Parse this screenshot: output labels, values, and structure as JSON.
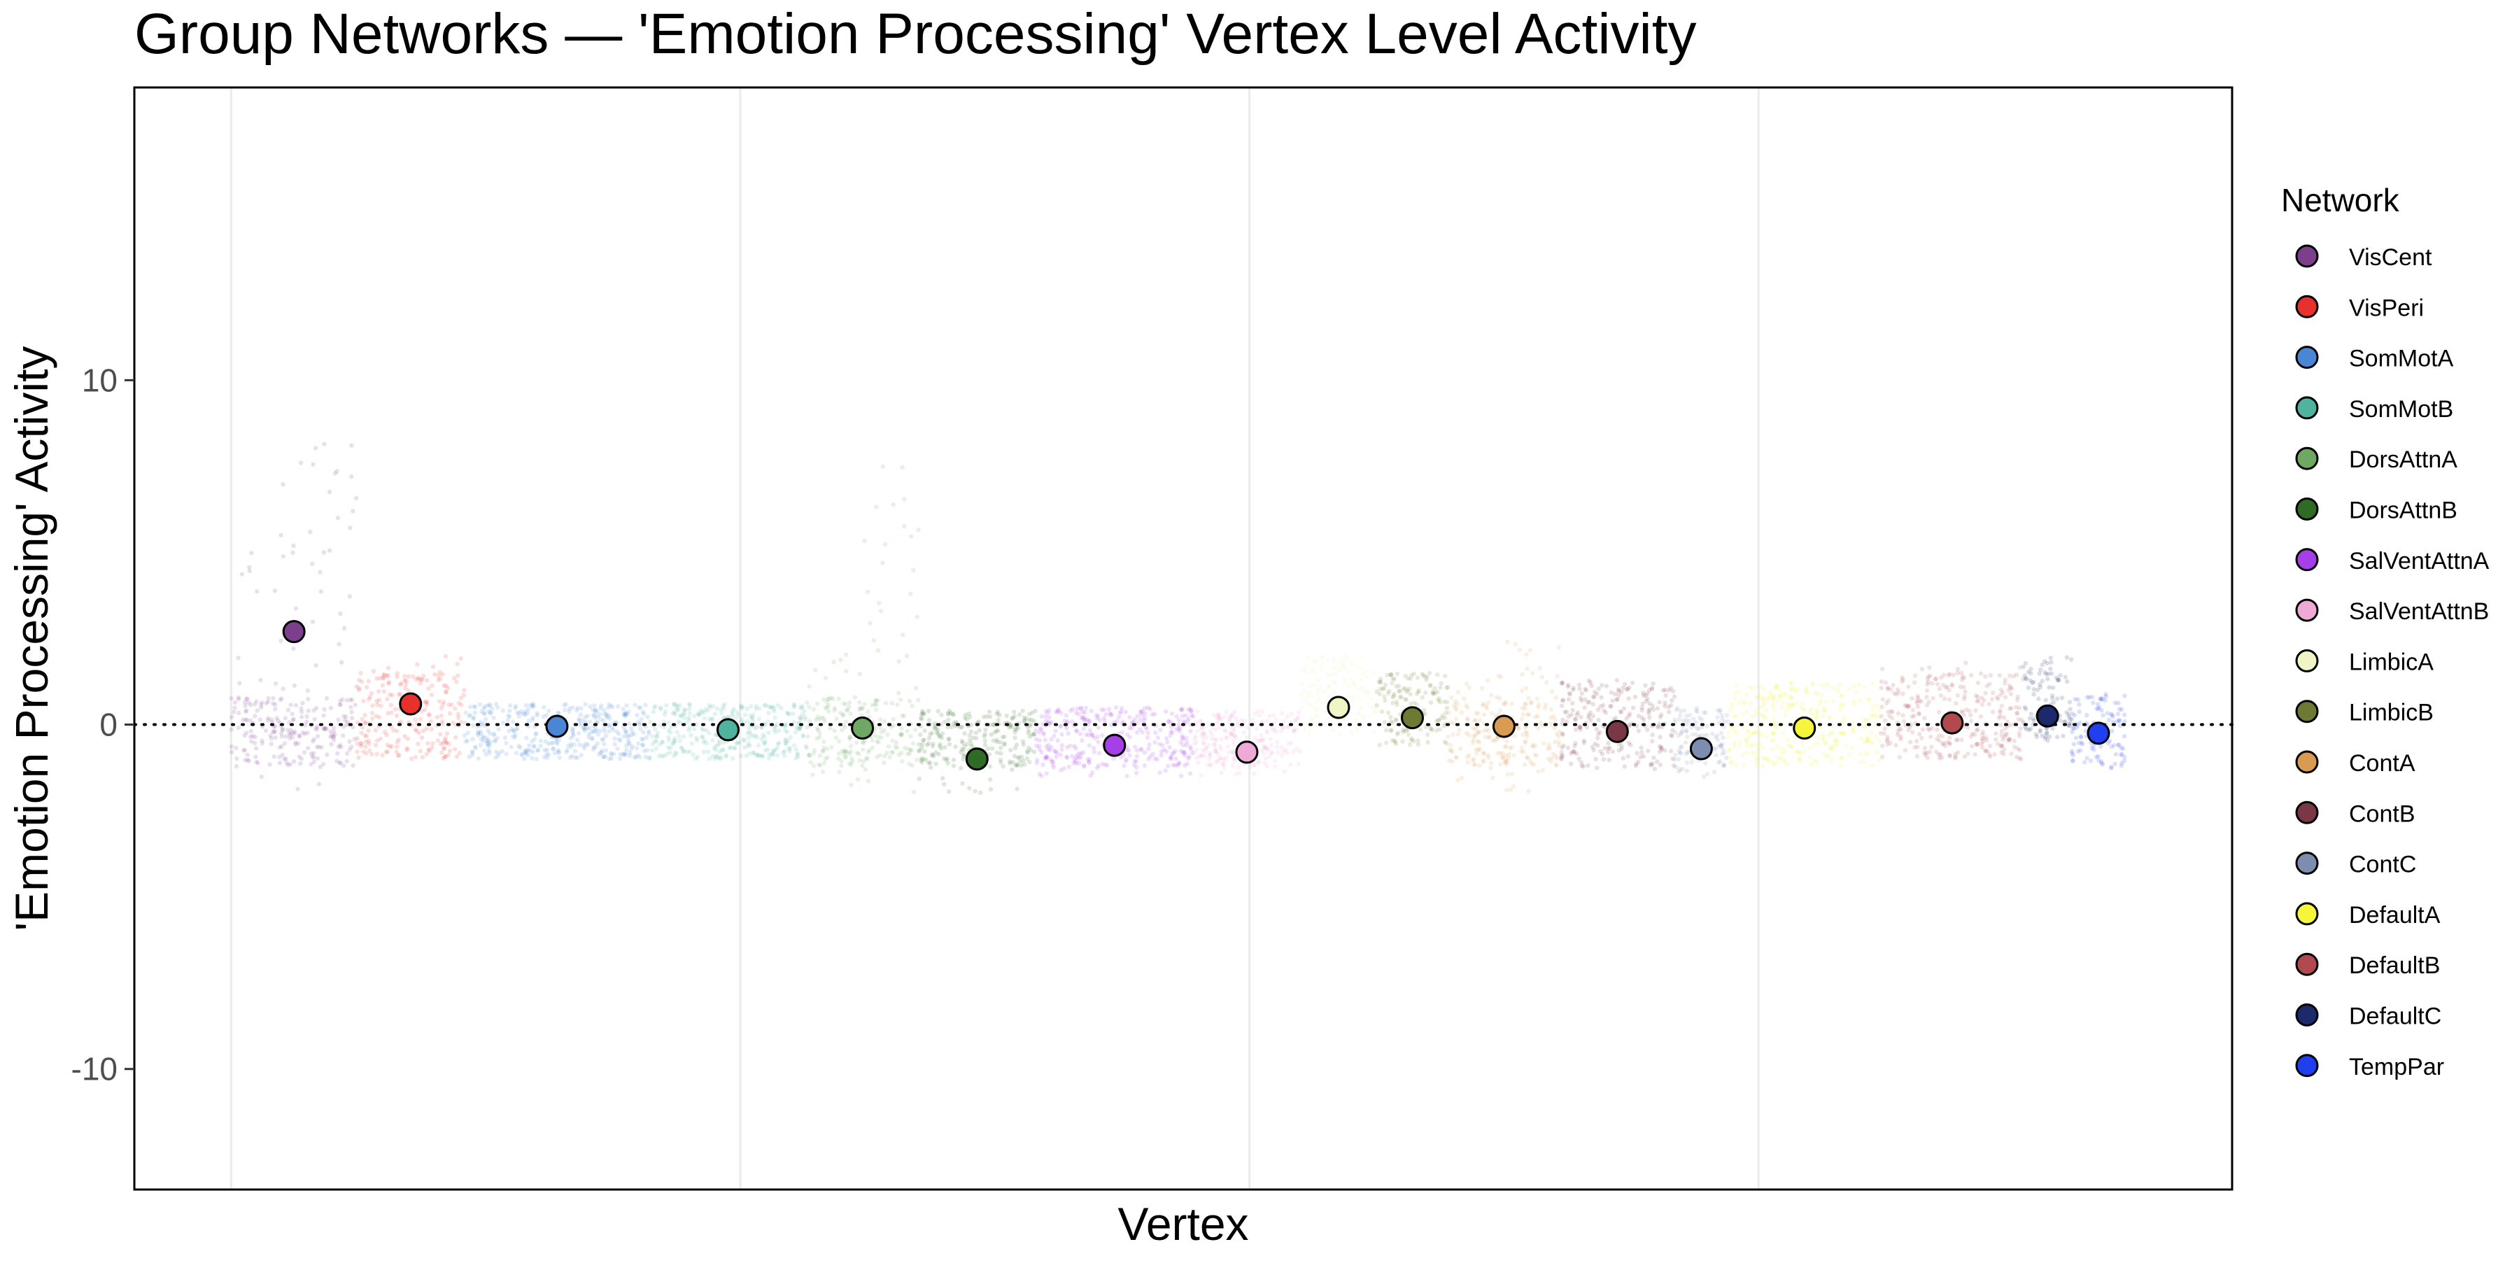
{
  "chart_data": {
    "type": "scatter",
    "title": "Group Networks — 'Emotion Processing' Vertex Level Activity",
    "xlabel": "Vertex",
    "ylabel": "'Emotion Processing' Activity",
    "ylim": [
      -13.5,
      18.5
    ],
    "yticks": [
      -10,
      0,
      10
    ],
    "xlim": [
      -190,
      3930
    ],
    "x_gridlines": [
      0,
      1000,
      2000,
      3000
    ],
    "reference_line": {
      "y": 0,
      "style": "dotted"
    },
    "grid": true,
    "legend": {
      "title": "Network",
      "placement": "right"
    },
    "series": [
      {
        "name": "VisCent",
        "color": "#7B3F8C",
        "x_start": 0,
        "x_end": 247,
        "mean": 2.7,
        "spread": [
          [
            -2.0,
            7.0
          ],
          [
            -2.0,
            8.5
          ]
        ]
      },
      {
        "name": "VisPeri",
        "color": "#E8302C",
        "x_start": 247,
        "x_end": 458,
        "mean": 0.6,
        "spread": [
          [
            -1.0,
            2.0
          ]
        ]
      },
      {
        "name": "SomMotA",
        "color": "#4A86D6",
        "x_start": 458,
        "x_end": 822,
        "mean": -0.05,
        "spread": [
          [
            -1.0,
            0.6
          ]
        ]
      },
      {
        "name": "SomMotB",
        "color": "#4FB3A0",
        "x_start": 822,
        "x_end": 1130,
        "mean": -0.15,
        "spread": [
          [
            -1.0,
            0.6
          ]
        ]
      },
      {
        "name": "DorsAttnA",
        "color": "#6FA863",
        "x_start": 1130,
        "x_end": 1350,
        "mean": -0.1,
        "spread": [
          [
            -2.0,
            2.2
          ],
          [
            -2.0,
            7.5
          ]
        ]
      },
      {
        "name": "DorsAttnB",
        "color": "#2F6B24",
        "x_start": 1350,
        "x_end": 1580,
        "mean": -1.0,
        "spread": [
          [
            -2.0,
            0.4
          ]
        ]
      },
      {
        "name": "SalVentAttnA",
        "color": "#A73FE8",
        "x_start": 1580,
        "x_end": 1890,
        "mean": -0.6,
        "spread": [
          [
            -1.5,
            0.5
          ]
        ]
      },
      {
        "name": "SalVentAttnB",
        "color": "#EEA9D6",
        "x_start": 1890,
        "x_end": 2100,
        "mean": -0.8,
        "spread": [
          [
            -1.5,
            0.4
          ]
        ]
      },
      {
        "name": "LimbicA",
        "color": "#F1F4C4",
        "x_start": 2100,
        "x_end": 2250,
        "mean": 0.5,
        "spread": [
          [
            -0.3,
            2.0
          ]
        ]
      },
      {
        "name": "LimbicB",
        "color": "#6D7A34",
        "x_start": 2250,
        "x_end": 2390,
        "mean": 0.2,
        "spread": [
          [
            -0.6,
            1.5
          ]
        ]
      },
      {
        "name": "ContA",
        "color": "#D99A52",
        "x_start": 2390,
        "x_end": 2610,
        "mean": -0.05,
        "spread": [
          [
            -2.0,
            1.5
          ],
          [
            -2.0,
            2.4
          ]
        ]
      },
      {
        "name": "ContB",
        "color": "#7A3846",
        "x_start": 2610,
        "x_end": 2835,
        "mean": -0.2,
        "spread": [
          [
            -1.3,
            1.3
          ]
        ]
      },
      {
        "name": "ContC",
        "color": "#7C8DB0",
        "x_start": 2835,
        "x_end": 2940,
        "mean": -0.7,
        "spread": [
          [
            -1.6,
            0.5
          ]
        ]
      },
      {
        "name": "DefaultA",
        "color": "#F5F53C",
        "x_start": 2940,
        "x_end": 3240,
        "mean": -0.1,
        "spread": [
          [
            -1.2,
            1.2
          ]
        ]
      },
      {
        "name": "DefaultB",
        "color": "#B04A4E",
        "x_start": 3240,
        "x_end": 3520,
        "mean": 0.05,
        "spread": [
          [
            -1.0,
            1.8
          ]
        ]
      },
      {
        "name": "DefaultC",
        "color": "#1C2A6B",
        "x_start": 3520,
        "x_end": 3615,
        "mean": 0.25,
        "spread": [
          [
            -0.5,
            2.0
          ]
        ]
      },
      {
        "name": "TempPar",
        "color": "#1F3FF0",
        "x_start": 3615,
        "x_end": 3720,
        "mean": -0.25,
        "spread": [
          [
            -1.3,
            0.9
          ]
        ]
      }
    ]
  }
}
